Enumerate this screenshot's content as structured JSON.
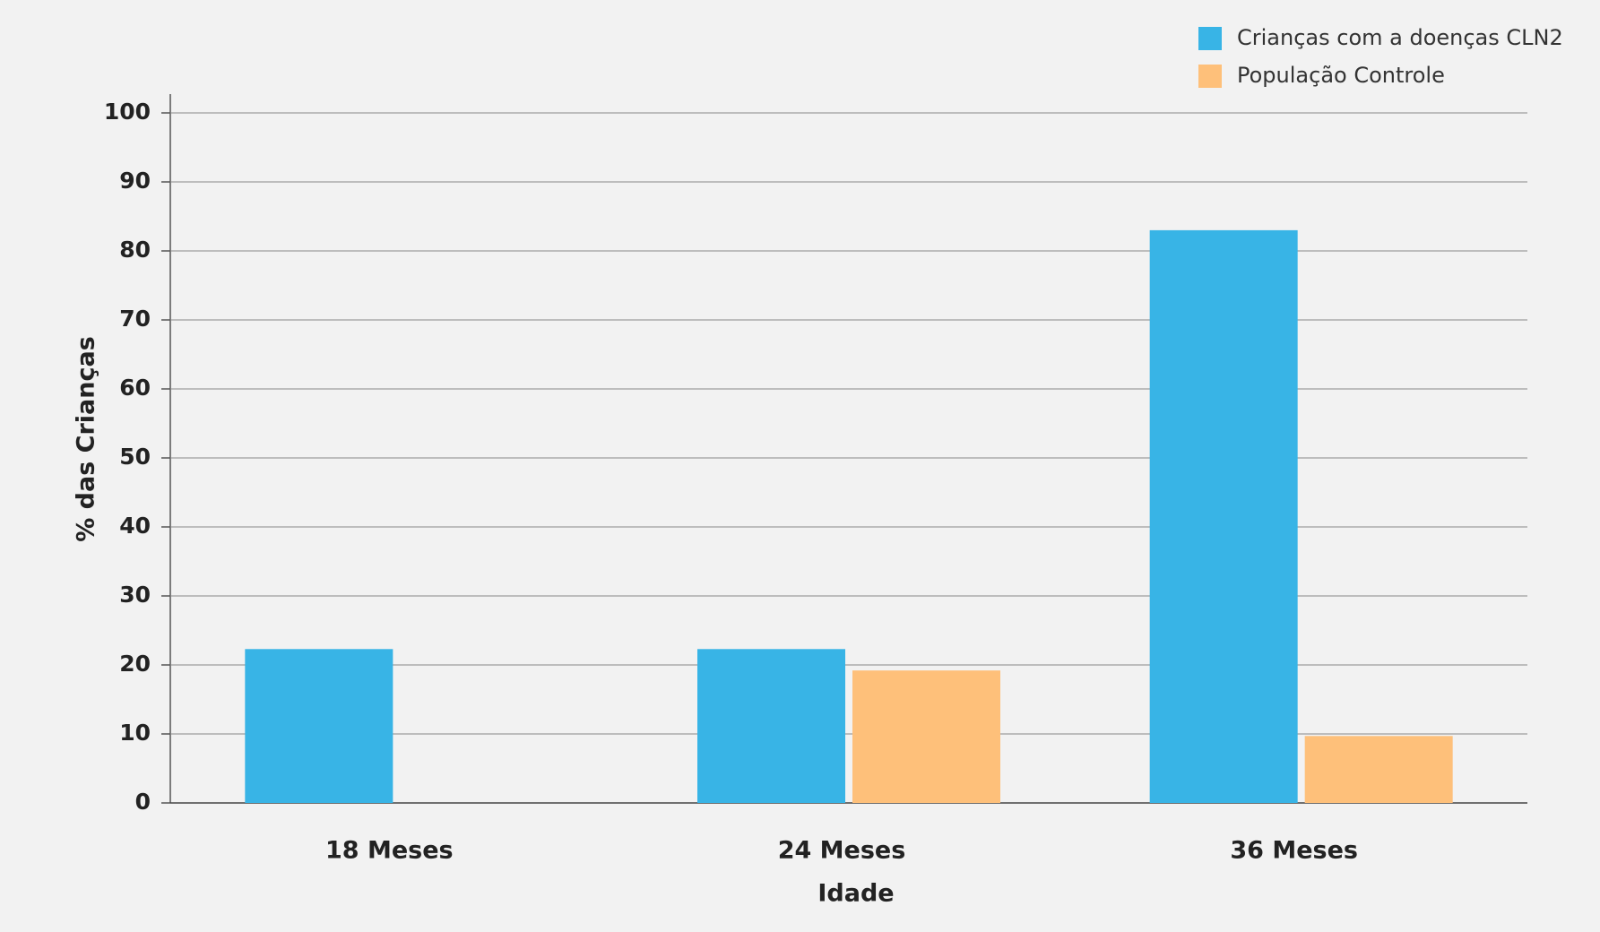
{
  "chart_data": {
    "type": "bar",
    "categories": [
      "18 Meses",
      "24 Meses",
      "36 Meses"
    ],
    "series": [
      {
        "name": "Crianças com a doenças CLN2",
        "color": "#38b4e6",
        "values": [
          22.3,
          22.3,
          83
        ]
      },
      {
        "name": "População Controle",
        "color": "#fec07a",
        "values": [
          null,
          19.2,
          9.7
        ]
      }
    ],
    "x_label": "Idade",
    "y_label": "% das Crianças",
    "ylim": [
      0,
      100
    ],
    "yticks": [
      0,
      10,
      20,
      30,
      40,
      50,
      60,
      70,
      80,
      90,
      100
    ],
    "grid": true,
    "legend": "top-right"
  }
}
